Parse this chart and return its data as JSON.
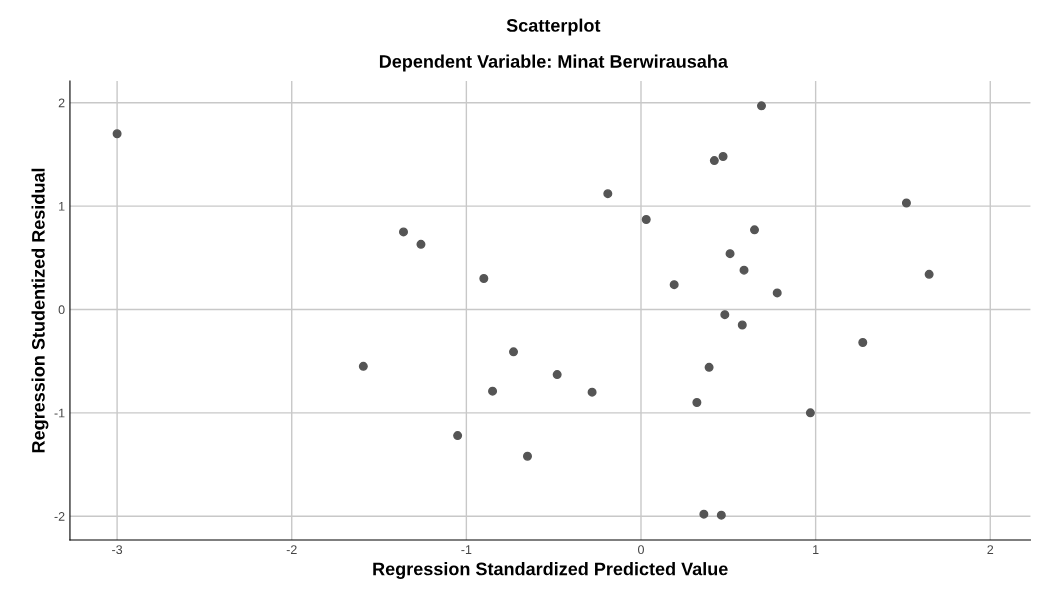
{
  "chart_data": {
    "type": "scatter",
    "title": "Scatterplot",
    "subtitle": "Dependent Variable: Minat Berwirausaha",
    "xlabel": "Regression Standardized Predicted Value",
    "ylabel": "Regression Studentized Residual",
    "x": [
      -3.0,
      0.69,
      0.42,
      0.47,
      -0.19,
      0.03,
      1.52,
      0.65,
      0.51,
      0.59,
      0.19,
      0.78,
      1.65,
      0.48,
      0.58,
      -1.36,
      -1.26,
      -0.9,
      -1.59,
      -0.73,
      -0.85,
      -1.05,
      -0.48,
      -0.28,
      -0.65,
      1.27,
      0.39,
      0.32,
      0.97,
      0.36,
      0.46
    ],
    "series": [
      {
        "color": "#555555",
        "values": [
          1.7,
          1.97,
          1.44,
          1.48,
          1.12,
          0.87,
          1.03,
          0.77,
          0.54,
          0.38,
          0.24,
          0.16,
          0.34,
          -0.05,
          -0.15,
          0.75,
          0.63,
          0.3,
          -0.55,
          -0.41,
          -0.79,
          -1.22,
          -0.63,
          -0.8,
          -1.42,
          -0.32,
          -0.56,
          -0.9,
          -1.0,
          -1.98,
          -1.99
        ]
      }
    ],
    "xlim": [
      -3.27,
      2.23
    ],
    "ylim": [
      -2.23,
      2.21
    ],
    "xticks": [
      -3,
      -2,
      -1,
      0,
      1,
      2
    ],
    "yticks": [
      -2,
      -1,
      0,
      1,
      2
    ],
    "grid": true,
    "marker": "circle"
  }
}
